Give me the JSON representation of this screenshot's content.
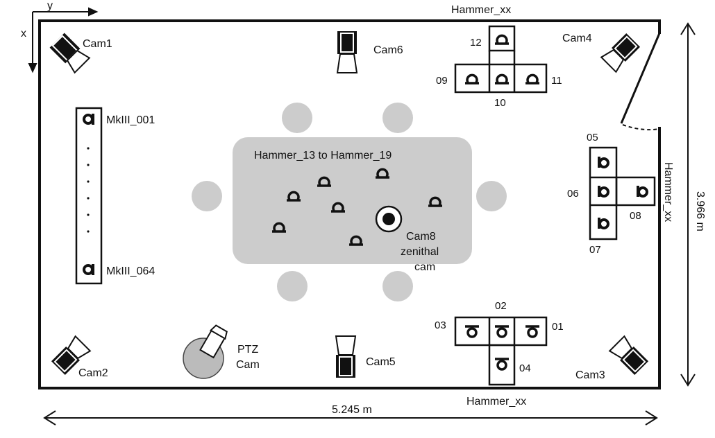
{
  "axes": {
    "x": "x",
    "y": "y"
  },
  "dimensions": {
    "width": "5.245 m",
    "depth": "3.966 m"
  },
  "cameras": {
    "cam1": "Cam1",
    "cam2": "Cam2",
    "cam3": "Cam3",
    "cam4": "Cam4",
    "cam5": "Cam5",
    "cam6": "Cam6",
    "cam8_line1": "Cam8",
    "cam8_line2": "zenithal",
    "cam8_line3": "cam",
    "ptz_line1": "PTZ",
    "ptz_line2": "Cam"
  },
  "mk3": {
    "first": "MkIII_001",
    "last": "MkIII_064"
  },
  "table": {
    "label": "Hammer_13 to Hammer_19"
  },
  "hammer_top": {
    "group": "Hammer_xx",
    "n09": "09",
    "n10": "10",
    "n11": "11",
    "n12": "12"
  },
  "hammer_right": {
    "group": "Hammer_xx",
    "n05": "05",
    "n06": "06",
    "n07": "07",
    "n08": "08"
  },
  "hammer_bottom": {
    "group": "Hammer_xx",
    "n01": "01",
    "n02": "02",
    "n03": "03",
    "n04": "04"
  },
  "colors": {
    "line": "#111111",
    "table": "#cccccc",
    "chair": "#cccccc",
    "ptz": "#bbbbbb"
  }
}
